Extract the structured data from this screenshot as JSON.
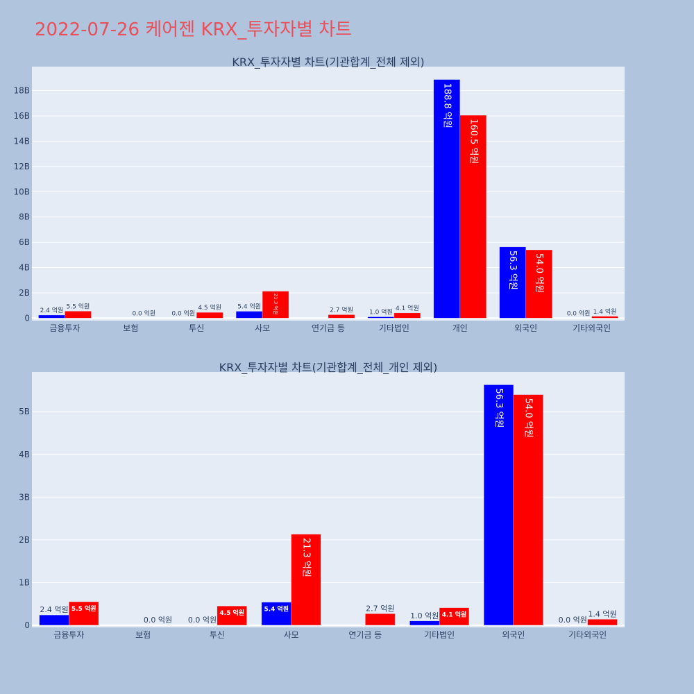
{
  "page_title": "2022-07-26 케어젠 KRX_투자자별 차트",
  "colors": {
    "buy": "#0000ff",
    "sell": "#ff0000",
    "plot_bg": "#e5ecf6",
    "page_bg": "#b0c4de",
    "text": "#2a3f5f",
    "title": "#e8505b"
  },
  "chart_data": [
    {
      "type": "bar",
      "title": "KRX_투자자별 차트(기관합계_전체 제외)",
      "categories": [
        "금융투자",
        "보험",
        "투신",
        "사모",
        "연기금 등",
        "기타법인",
        "개인",
        "외국인",
        "기타외국인"
      ],
      "series": [
        {
          "color": "#0000ff",
          "values": [
            240000000,
            0,
            0,
            540000000,
            0,
            100000000,
            18880000000,
            5630000000,
            0
          ],
          "labels": [
            "2.4 억원",
            "",
            "0.0 억원",
            "5.4 억원",
            "",
            "1.0 억원",
            "188.8 억원",
            "56.3 억원",
            "0.0 억원"
          ]
        },
        {
          "color": "#ff0000",
          "values": [
            550000000,
            0,
            450000000,
            2130000000,
            270000000,
            410000000,
            16050000000,
            5400000000,
            140000000
          ],
          "labels": [
            "5.5 억원",
            "0.0 억원",
            "4.5 억원",
            "21.3 억원",
            "2.7 억원",
            "4.1 억원",
            "160.5 억원",
            "54.0 억원",
            "1.4 억원"
          ]
        }
      ],
      "yticks": [
        0,
        2000000000,
        4000000000,
        6000000000,
        8000000000,
        10000000000,
        12000000000,
        14000000000,
        16000000000,
        18000000000
      ],
      "ytick_labels": [
        "0",
        "2B",
        "4B",
        "6B",
        "8B",
        "10B",
        "12B",
        "14B",
        "16B",
        "18B"
      ],
      "ylim": [
        -200000000,
        19900000000
      ],
      "grid": true,
      "legend": false
    },
    {
      "type": "bar",
      "title": "KRX_투자자별 차트(기관합계_전체_개인 제외)",
      "categories": [
        "금융투자",
        "보험",
        "투신",
        "사모",
        "연기금 등",
        "기타법인",
        "외국인",
        "기타외국인"
      ],
      "series": [
        {
          "color": "#0000ff",
          "values": [
            240000000,
            0,
            0,
            540000000,
            0,
            100000000,
            5630000000,
            0
          ],
          "labels": [
            "2.4 억원",
            "",
            "0.0 억원",
            "5.4 억원",
            "",
            "1.0 억원",
            "56.3 억원",
            "0.0 억원"
          ]
        },
        {
          "color": "#ff0000",
          "values": [
            550000000,
            0,
            450000000,
            2130000000,
            270000000,
            410000000,
            5400000000,
            140000000
          ],
          "labels": [
            "5.5 억원",
            "0.0 억원",
            "4.5 억원",
            "21.3 억원",
            "2.7 억원",
            "4.1 억원",
            "54.0 억원",
            "1.4 억원"
          ]
        }
      ],
      "yticks": [
        0,
        1000000000,
        2000000000,
        3000000000,
        4000000000,
        5000000000
      ],
      "ytick_labels": [
        "0",
        "1B",
        "2B",
        "3B",
        "4B",
        "5B"
      ],
      "ylim": [
        -50000000,
        5930000000
      ],
      "grid": true,
      "legend": false
    }
  ]
}
